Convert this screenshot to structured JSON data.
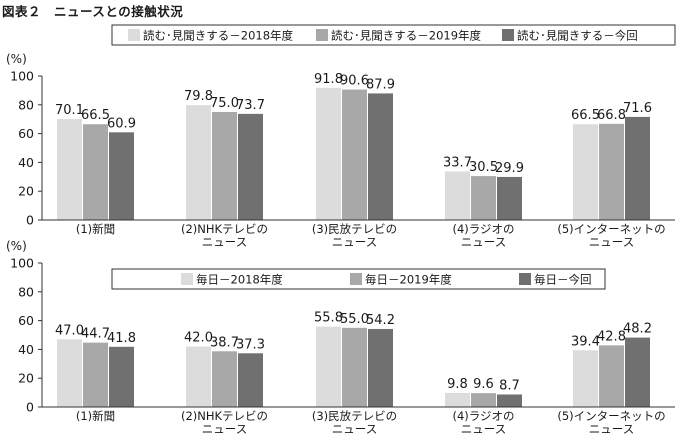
{
  "figure_title": "図表２　ニュースとの接触状況",
  "colors": [
    "#dcdcdc",
    "#a8a8a8",
    "#707070"
  ],
  "chart_data": [
    {
      "type": "bar",
      "title": "",
      "ylabel": "(%)",
      "ylim": [
        0,
        100
      ],
      "yticks": [
        "0",
        "20",
        "40",
        "60",
        "80",
        "100"
      ],
      "categories": [
        [
          "(1)新聞"
        ],
        [
          "(2)NHKテレビの",
          "ニュース"
        ],
        [
          "(3)民放テレビの",
          "ニュース"
        ],
        [
          "(4)ラジオの",
          "ニュース"
        ],
        [
          "(5)インターネットの",
          "ニュース"
        ]
      ],
      "series": [
        {
          "name": "読む･見聞きする－2018年度",
          "values": [
            70.1,
            79.8,
            91.8,
            33.7,
            66.5
          ],
          "labels": [
            "70.1",
            "79.8",
            "91.8",
            "33.7",
            "66.5"
          ]
        },
        {
          "name": "読む･見聞きする－2019年度",
          "values": [
            66.5,
            75.0,
            90.6,
            30.5,
            66.8
          ],
          "labels": [
            "66.5",
            "75.0",
            "90.6",
            "30.5",
            "66.8"
          ]
        },
        {
          "name": "読む･見聞きする－今回",
          "values": [
            60.9,
            73.7,
            87.9,
            29.9,
            71.6
          ],
          "labels": [
            "60.9",
            "73.7",
            "87.9",
            "29.9",
            "71.6"
          ]
        }
      ]
    },
    {
      "type": "bar",
      "title": "",
      "ylabel": "(%)",
      "ylim": [
        0,
        100
      ],
      "yticks": [
        "0",
        "20",
        "40",
        "60",
        "80",
        "100"
      ],
      "categories": [
        [
          "(1)新聞"
        ],
        [
          "(2)NHKテレビの",
          "ニュース"
        ],
        [
          "(3)民放テレビの",
          "ニュース"
        ],
        [
          "(4)ラジオの",
          "ニュース"
        ],
        [
          "(5)インターネットの",
          "ニュース"
        ]
      ],
      "series": [
        {
          "name": "毎日－2018年度",
          "values": [
            47.0,
            42.0,
            55.8,
            9.8,
            39.4
          ],
          "labels": [
            "47.0",
            "42.0",
            "55.8",
            "9.8",
            "39.4"
          ]
        },
        {
          "name": "毎日－2019年度",
          "values": [
            44.7,
            38.7,
            55.0,
            9.6,
            42.8
          ],
          "labels": [
            "44.7",
            "38.7",
            "55.0",
            "9.6",
            "42.8"
          ]
        },
        {
          "name": "毎日－今回",
          "values": [
            41.8,
            37.3,
            54.2,
            8.7,
            48.2
          ],
          "labels": [
            "41.8",
            "37.3",
            "54.2",
            "8.7",
            "48.2"
          ]
        }
      ]
    }
  ]
}
